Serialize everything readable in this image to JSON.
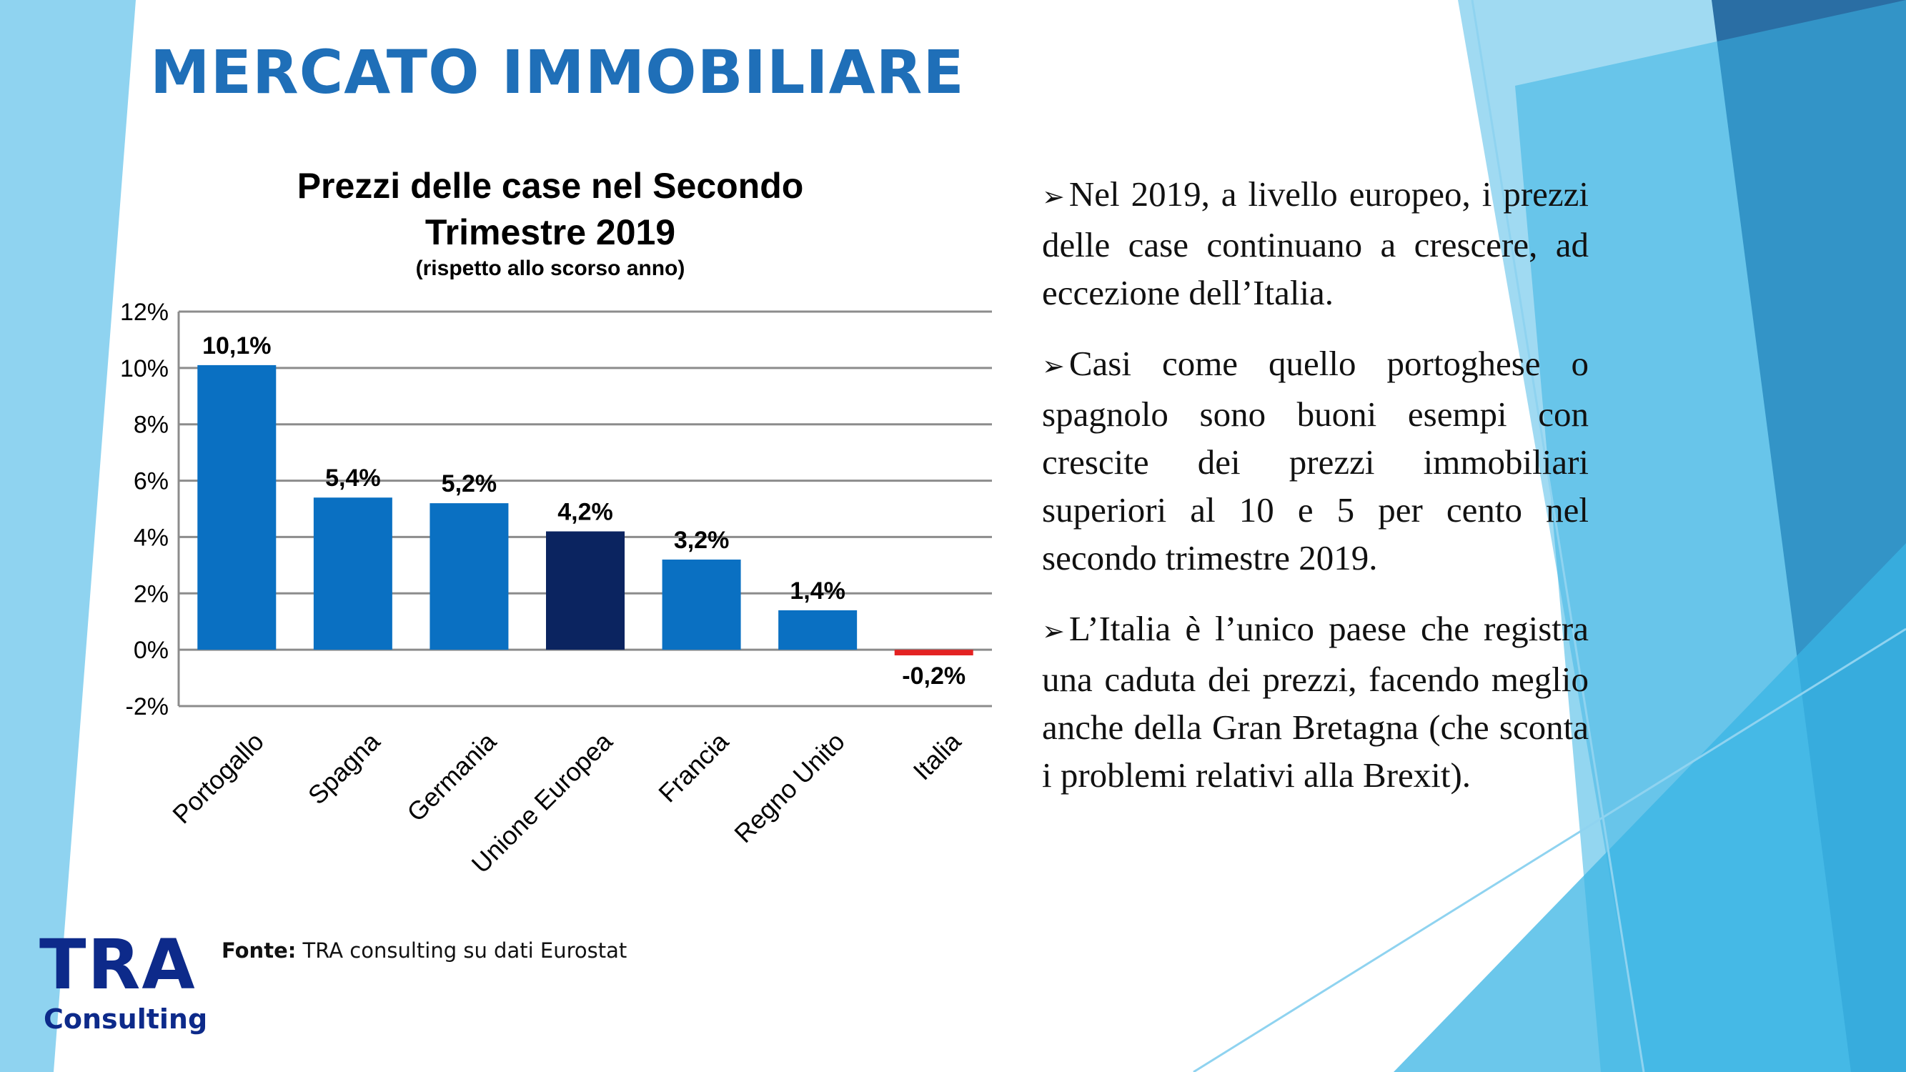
{
  "slide": {
    "title": "MERCATO IMMOBILIARE",
    "source": {
      "label": "Fonte:",
      "text": " TRA consulting su dati Eurostat"
    },
    "logo": {
      "line1": "TRA",
      "line2": "Consulting"
    }
  },
  "bullets": [
    "Nel 2019, a livello europeo, i prezzi delle case continuano a crescere, ad eccezione dell’Italia.",
    "Casi come quello portoghese o spagnolo sono buoni esempi con crescite dei prezzi immobiliari superiori al 10 e 5 per cento nel secondo trimestre 2019.",
    "L’Italia è l’unico paese che registra una caduta dei prezzi, facendo meglio anche della Gran Bretagna (che sconta i problemi relativi alla Brexit)."
  ],
  "icons": {
    "bullet": "arrowhead-bullet-icon"
  },
  "colors": {
    "title": "#1f6fb8",
    "bar": "#0a70c2",
    "bar_eu": "#0b2460",
    "bar_negative": "#e32222",
    "gridline": "#8c8c8c",
    "deco_light": "#8fd3f0",
    "deco_mid": "#3ab4e4",
    "deco_dark": "#2a6ea4",
    "logo": "#0d2a8a"
  },
  "chart_data": {
    "type": "bar",
    "title": "Prezzi delle case nel Secondo Trimestre 2019",
    "title_lines": [
      "Prezzi delle case nel Secondo",
      "Trimestre 2019"
    ],
    "subtitle": "(rispetto  allo scorso anno)",
    "categories": [
      "Portogallo",
      "Spagna",
      "Germania",
      "Unione Europea",
      "Francia",
      "Regno Unito",
      "Italia"
    ],
    "values": [
      10.1,
      5.4,
      5.2,
      4.2,
      3.2,
      1.4,
      -0.2
    ],
    "data_labels": [
      "10,1%",
      "5,4%",
      "5,2%",
      "4,2%",
      "3,2%",
      "1,4%",
      "-0,2%"
    ],
    "ylim": [
      -2,
      12
    ],
    "yticks": [
      -2,
      0,
      2,
      4,
      6,
      8,
      10,
      12
    ],
    "ytick_labels": [
      "-2%",
      "0%",
      "2%",
      "4%",
      "6%",
      "8%",
      "10%",
      "12%"
    ],
    "highlight": {
      "category": "Unione Europea",
      "color": "#0b2460"
    },
    "negative_color": "#e32222",
    "grid": true,
    "legend": "none"
  }
}
